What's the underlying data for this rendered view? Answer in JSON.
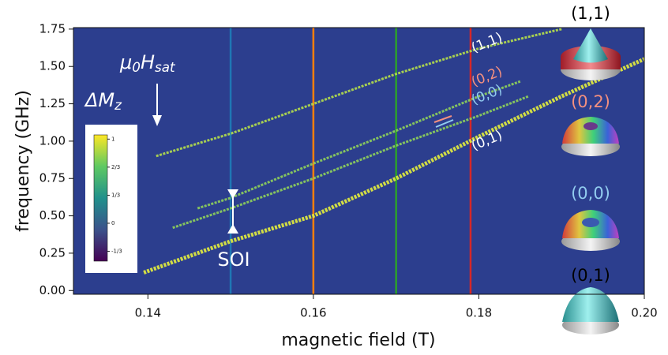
{
  "chart_data": {
    "type": "line",
    "xlabel": "magnetic field (T)",
    "ylabel": "frequency (GHz)",
    "xlim": [
      0.131,
      0.2
    ],
    "ylim": [
      -0.025,
      1.76
    ],
    "xticks": [
      0.14,
      0.16,
      0.18,
      {
        "value": 0.2,
        "label": "0.20"
      }
    ],
    "yticks": [
      {
        "value": 0,
        "label": "0.00"
      },
      0.25,
      {
        "value": 0.5,
        "label": "0.50"
      },
      0.75,
      {
        "value": 1,
        "label": "1.00"
      },
      1.25,
      {
        "value": 1.5,
        "label": "1.50"
      },
      1.75
    ],
    "background": "#2c3e8e",
    "series": [
      {
        "name": "(1,1)",
        "color": "#b5df4a",
        "label_color": "#ffffff",
        "icon_label_color": "#000000",
        "x": [
          0.141,
          0.15,
          0.16,
          0.17,
          0.18,
          0.19
        ],
        "values": [
          0.9,
          1.05,
          1.25,
          1.45,
          1.62,
          1.75
        ]
      },
      {
        "name": "(0,2)",
        "color": "#8fd25a",
        "label_color": "#f5907f",
        "icon_label_color": "#f5907f",
        "x": [
          0.146,
          0.15,
          0.16,
          0.17,
          0.18,
          0.185
        ],
        "values": [
          0.55,
          0.62,
          0.85,
          1.07,
          1.3,
          1.4
        ]
      },
      {
        "name": "(0,0)",
        "color": "#8fd25a",
        "label_color": "#92ccef",
        "icon_label_color": "#92ccef",
        "x": [
          0.143,
          0.15,
          0.16,
          0.17,
          0.18,
          0.186
        ],
        "values": [
          0.42,
          0.55,
          0.75,
          0.97,
          1.17,
          1.3
        ]
      },
      {
        "name": "(0,1)",
        "color": "#e4ee3c",
        "label_color": "#ffffff",
        "icon_label_color": "#000000",
        "x": [
          0.1395,
          0.15,
          0.16,
          0.17,
          0.18,
          0.19,
          0.2
        ],
        "values": [
          0.12,
          0.33,
          0.5,
          0.75,
          1.03,
          1.3,
          1.55
        ]
      }
    ],
    "vlines": {
      "x": [
        0.15,
        0.16,
        0.17,
        0.179
      ],
      "colors": [
        "#1f77b4",
        "#ff7f0e",
        "#2ca02c",
        "#d62728"
      ]
    },
    "saturation_label": [
      {
        "text": "μ",
        "sub": false
      },
      {
        "text": "0",
        "sub": true
      },
      {
        "text": "H",
        "sub": false
      },
      {
        "text": "sat",
        "sub": true
      }
    ],
    "soi_label": "SOI",
    "colorbar": {
      "title": [
        {
          "text": "ΔM",
          "sub": false
        },
        {
          "text": "z",
          "sub": true
        }
      ],
      "lim": [
        -0.45,
        1.05
      ],
      "ticks": [
        {
          "value": 1,
          "label": "1"
        },
        {
          "value": 0.667,
          "label": "2/3"
        },
        {
          "value": 0.333,
          "label": "1/3"
        },
        0,
        {
          "value": -0.333,
          "label": "-1/3"
        }
      ],
      "colors": [
        "#440154",
        "#3b528b",
        "#21918c",
        "#5ec962",
        "#fde725"
      ]
    }
  }
}
